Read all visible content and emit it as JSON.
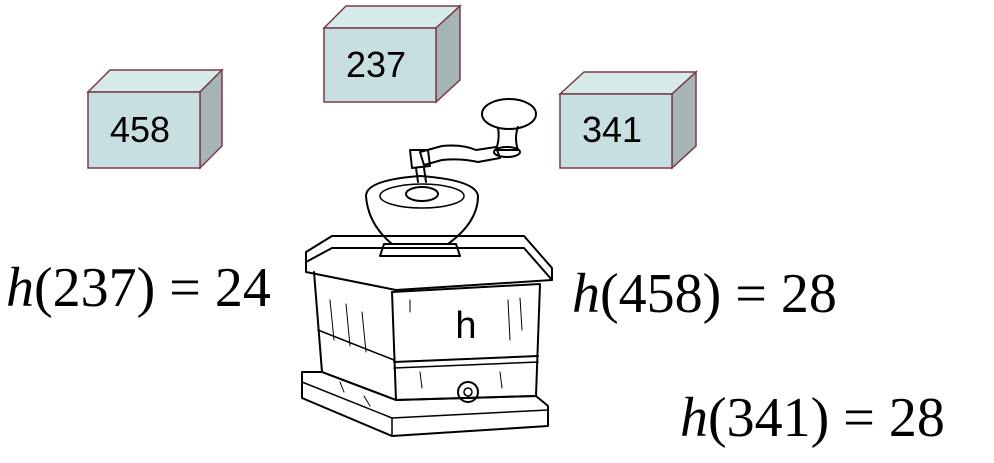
{
  "colors": {
    "box_front": "#c7dfe0",
    "box_top": "#d7eaea",
    "box_side": "#a7b4b6",
    "box_edge": "#7a3b48"
  },
  "boxes": [
    {
      "label": "458"
    },
    {
      "label": "237"
    },
    {
      "label": "341"
    }
  ],
  "grinder": {
    "icon": "coffee-grinder-icon",
    "label": "h"
  },
  "equations": [
    {
      "fn": "h",
      "arg": "(237)",
      "rest": " = 24"
    },
    {
      "fn": "h",
      "arg": "(458)",
      "rest": " = 28"
    },
    {
      "fn": "h",
      "arg": "(341)",
      "rest": " = 28"
    }
  ]
}
